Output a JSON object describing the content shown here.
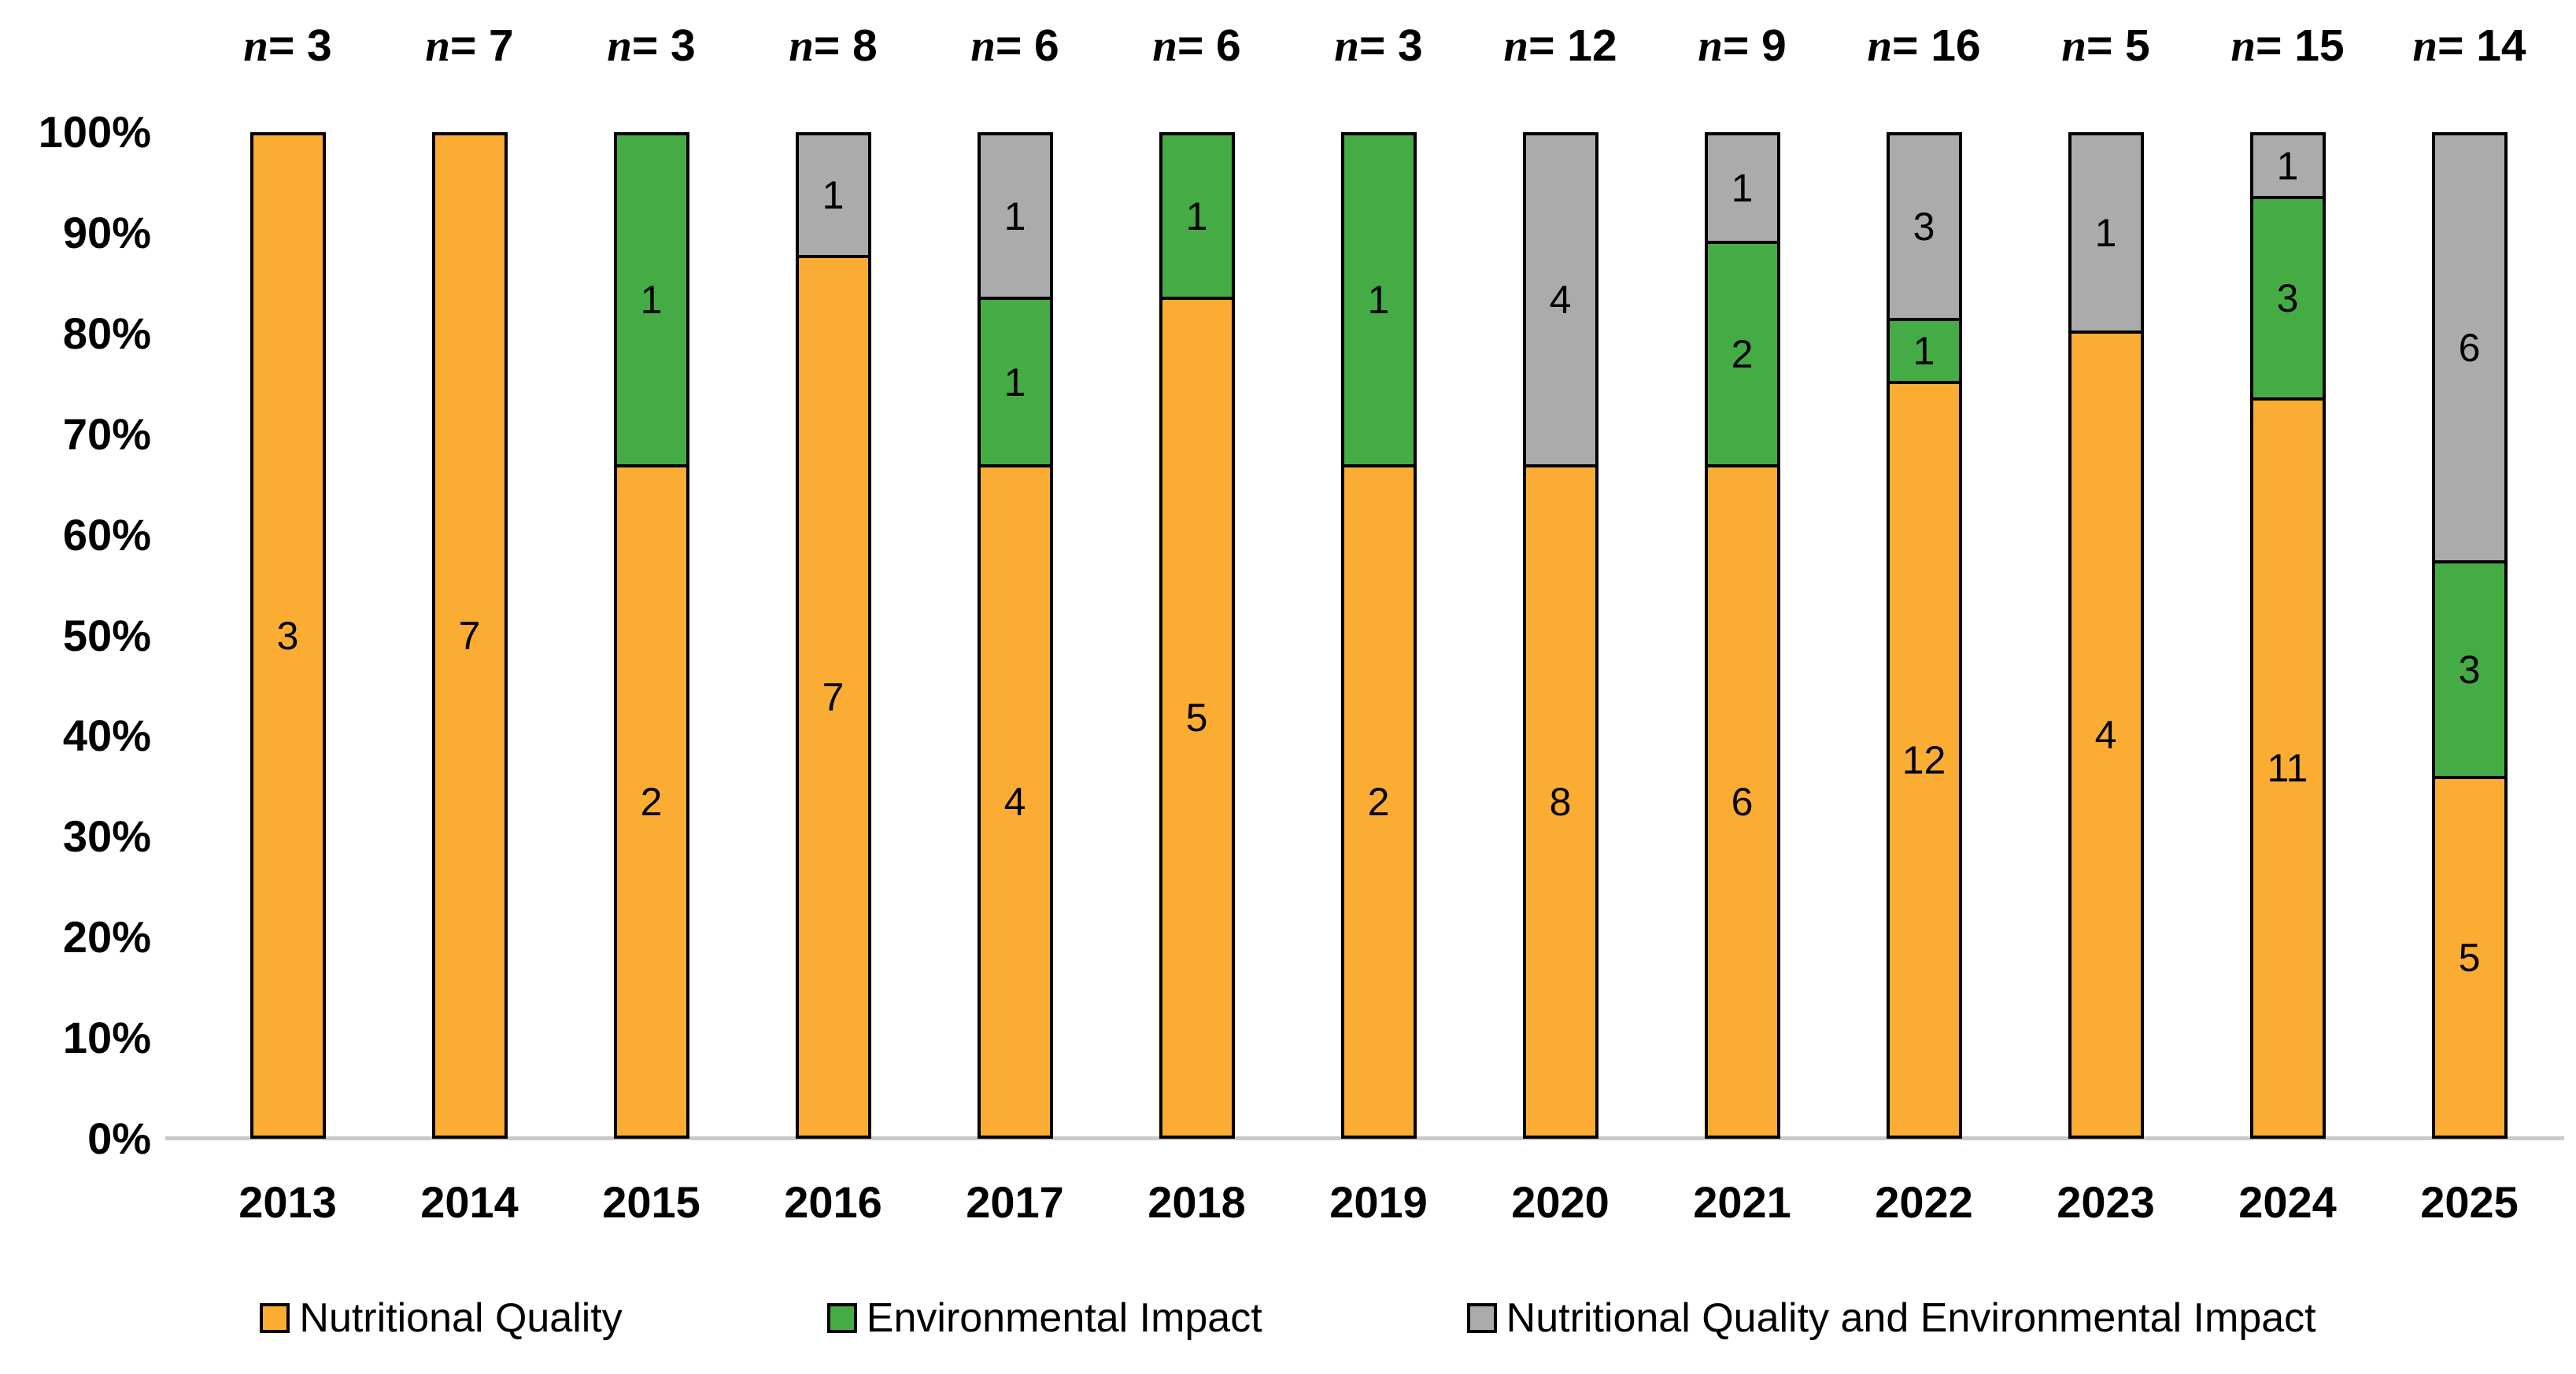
{
  "chart_data": {
    "type": "bar",
    "subtype": "100-percent-stacked-column",
    "title": "",
    "xlabel": "",
    "ylabel": "",
    "grid": false,
    "categories": [
      "2013",
      "2014",
      "2015",
      "2016",
      "2017",
      "2018",
      "2019",
      "2020",
      "2021",
      "2022",
      "2023",
      "2024",
      "2025"
    ],
    "n_labels": [
      "n = 3",
      "n = 7",
      "n = 3",
      "n = 8",
      "n = 6",
      "n = 6",
      "n = 3",
      "n = 12",
      "n = 9",
      "n = 16",
      "n = 5",
      "n = 15",
      "n = 14"
    ],
    "totals": [
      3,
      7,
      3,
      8,
      6,
      6,
      3,
      12,
      9,
      16,
      5,
      15,
      14
    ],
    "series": [
      {
        "name": "Nutritional Quality",
        "color": "#FBAC33",
        "values": [
          3,
          7,
          2,
          7,
          4,
          5,
          2,
          8,
          6,
          12,
          4,
          11,
          5
        ]
      },
      {
        "name": "Environmental Impact",
        "color": "#45AC45",
        "values": [
          0,
          0,
          1,
          0,
          1,
          1,
          1,
          0,
          2,
          1,
          0,
          3,
          3
        ]
      },
      {
        "name": "Nutritional Quality and Environmental Impact",
        "color": "#ABABAB",
        "values": [
          0,
          0,
          0,
          1,
          1,
          0,
          0,
          4,
          1,
          3,
          1,
          1,
          6
        ]
      }
    ],
    "y_axis": {
      "min": 0,
      "max": 100,
      "tick_labels": [
        "100%",
        "90%",
        "80%",
        "70%",
        "60%",
        "50%",
        "40%",
        "30%",
        "20%",
        "10%",
        "0%"
      ]
    },
    "legend_position": "bottom",
    "outline_color": "#000000",
    "baseline_color": "#C9C9C9",
    "text_color": "#000000"
  }
}
